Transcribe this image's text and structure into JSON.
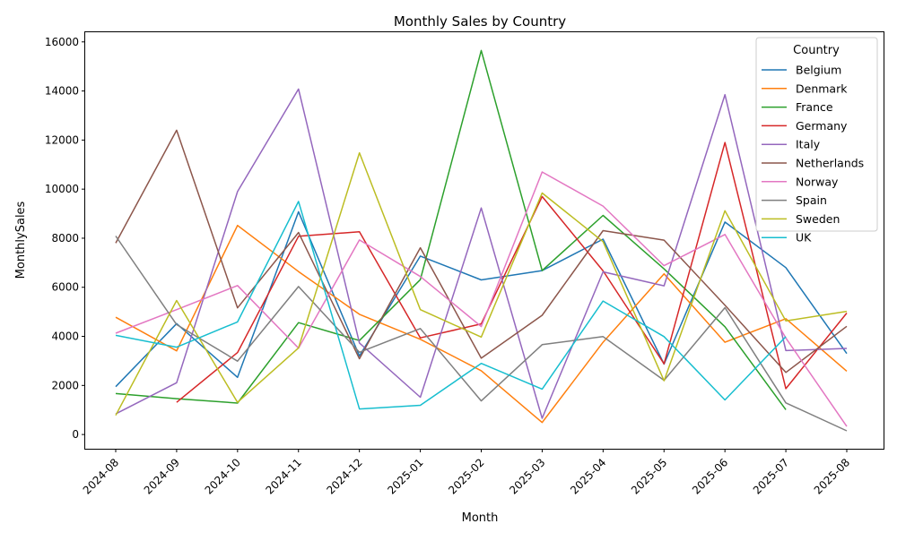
{
  "chart_data": {
    "type": "line",
    "title": "Monthly Sales by Country",
    "xlabel": "Month",
    "ylabel": "MonthlySales",
    "categories": [
      "2024-08",
      "2024-09",
      "2024-10",
      "2024-11",
      "2024-12",
      "2025-01",
      "2025-02",
      "2025-03",
      "2025-04",
      "2025-05",
      "2025-06",
      "2025-07",
      "2025-08"
    ],
    "ylim": [
      -580,
      16430
    ],
    "yticks": [
      0,
      2000,
      4000,
      6000,
      8000,
      10000,
      12000,
      14000,
      16000
    ],
    "grid": false,
    "legend": {
      "title": "Country",
      "placement": "top-right"
    },
    "series": [
      {
        "name": "Belgium",
        "color": "#1f77b4",
        "values": [
          1950,
          4520,
          2330,
          9080,
          3200,
          7270,
          6300,
          6680,
          7960,
          2870,
          8660,
          6800,
          3300
        ]
      },
      {
        "name": "Denmark",
        "color": "#ff7f0e",
        "values": [
          4780,
          3410,
          8520,
          6640,
          4900,
          3880,
          2600,
          490,
          3760,
          6550,
          3760,
          4720,
          2580
        ]
      },
      {
        "name": "France",
        "color": "#2ca02c",
        "values": [
          1670,
          1460,
          1280,
          4560,
          3830,
          6310,
          15650,
          6680,
          8930,
          6750,
          4390,
          1010,
          null
        ]
      },
      {
        "name": "Germany",
        "color": "#d62728",
        "values": [
          null,
          1310,
          3340,
          8080,
          8260,
          3940,
          4510,
          9700,
          6670,
          2880,
          11900,
          1870,
          4950
        ]
      },
      {
        "name": "Italy",
        "color": "#9467bd",
        "values": [
          840,
          2110,
          9900,
          14080,
          3730,
          1520,
          9230,
          660,
          6630,
          6060,
          13850,
          3420,
          3510
        ]
      },
      {
        "name": "Netherlands",
        "color": "#8c564b",
        "values": [
          7800,
          12400,
          5160,
          8230,
          3090,
          7610,
          3110,
          4860,
          8310,
          7920,
          5270,
          2530,
          4410
        ]
      },
      {
        "name": "Norway",
        "color": "#e377c2",
        "values": [
          4130,
          5090,
          6070,
          3520,
          7930,
          6440,
          4400,
          10700,
          9310,
          6880,
          8150,
          3930,
          330
        ]
      },
      {
        "name": "Spain",
        "color": "#7f7f7f",
        "values": [
          8090,
          4480,
          2990,
          6030,
          3350,
          4320,
          1370,
          3660,
          3990,
          2210,
          5170,
          1290,
          150
        ]
      },
      {
        "name": "Sweden",
        "color": "#bcbd22",
        "values": [
          780,
          5460,
          1310,
          3530,
          11480,
          5090,
          3970,
          9840,
          7860,
          2190,
          9120,
          4630,
          5020
        ]
      },
      {
        "name": "UK",
        "color": "#17becf",
        "values": [
          4040,
          3560,
          4590,
          9500,
          1040,
          1190,
          2900,
          1850,
          5440,
          3990,
          1410,
          3990,
          null
        ]
      }
    ]
  }
}
